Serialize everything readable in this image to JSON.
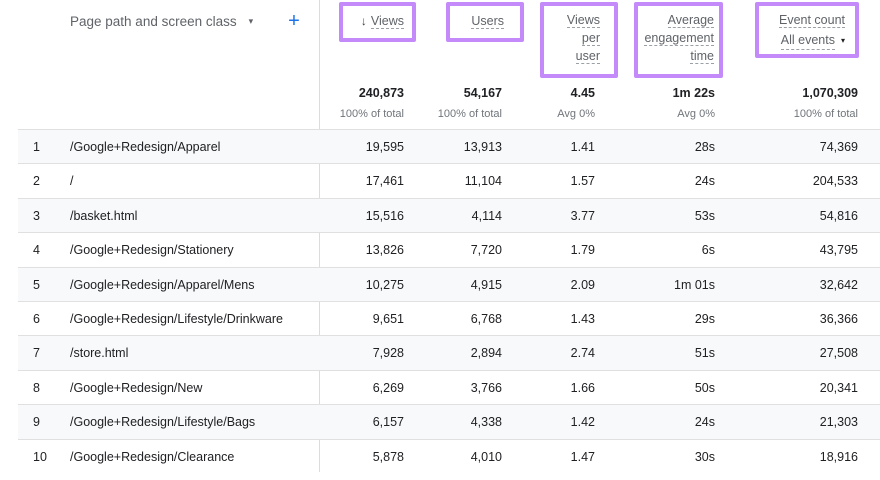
{
  "dimension": {
    "label": "Page path and screen class",
    "caret": "▾",
    "add": "+"
  },
  "columns": [
    {
      "key": "views",
      "label": "Views",
      "sort_arrow": "↓"
    },
    {
      "key": "users",
      "label": "Users"
    },
    {
      "key": "vpu",
      "label_lines": [
        "Views",
        "per",
        "user"
      ]
    },
    {
      "key": "avg",
      "label_lines": [
        "Average",
        "engagement",
        "time"
      ]
    },
    {
      "key": "events",
      "label": "Event count",
      "selector": "All events",
      "caret": "▾"
    }
  ],
  "totals": {
    "views": "240,873",
    "views_sub": "100% of total",
    "users": "54,167",
    "users_sub": "100% of total",
    "vpu": "4.45",
    "vpu_sub": "Avg 0%",
    "avg": "1m 22s",
    "avg_sub": "Avg 0%",
    "events": "1,070,309",
    "events_sub": "100% of total"
  },
  "rows": [
    {
      "idx": "1",
      "path": "/Google+Redesign/Apparel",
      "views": "19,595",
      "users": "13,913",
      "vpu": "1.41",
      "avg": "28s",
      "events": "74,369"
    },
    {
      "idx": "2",
      "path": "/",
      "views": "17,461",
      "users": "11,104",
      "vpu": "1.57",
      "avg": "24s",
      "events": "204,533"
    },
    {
      "idx": "3",
      "path": "/basket.html",
      "views": "15,516",
      "users": "4,114",
      "vpu": "3.77",
      "avg": "53s",
      "events": "54,816"
    },
    {
      "idx": "4",
      "path": "/Google+Redesign/Stationery",
      "views": "13,826",
      "users": "7,720",
      "vpu": "1.79",
      "avg": "6s",
      "events": "43,795"
    },
    {
      "idx": "5",
      "path": "/Google+Redesign/Apparel/Mens",
      "views": "10,275",
      "users": "4,915",
      "vpu": "2.09",
      "avg": "1m 01s",
      "events": "32,642"
    },
    {
      "idx": "6",
      "path": "/Google+Redesign/Lifestyle/Drinkware",
      "views": "9,651",
      "users": "6,768",
      "vpu": "1.43",
      "avg": "29s",
      "events": "36,366"
    },
    {
      "idx": "7",
      "path": "/store.html",
      "views": "7,928",
      "users": "2,894",
      "vpu": "2.74",
      "avg": "51s",
      "events": "27,508"
    },
    {
      "idx": "8",
      "path": "/Google+Redesign/New",
      "views": "6,269",
      "users": "3,766",
      "vpu": "1.66",
      "avg": "50s",
      "events": "20,341"
    },
    {
      "idx": "9",
      "path": "/Google+Redesign/Lifestyle/Bags",
      "views": "6,157",
      "users": "4,338",
      "vpu": "1.42",
      "avg": "24s",
      "events": "21,303"
    },
    {
      "idx": "10",
      "path": "/Google+Redesign/Clearance",
      "views": "5,878",
      "users": "4,010",
      "vpu": "1.47",
      "avg": "30s",
      "events": "18,916"
    }
  ]
}
